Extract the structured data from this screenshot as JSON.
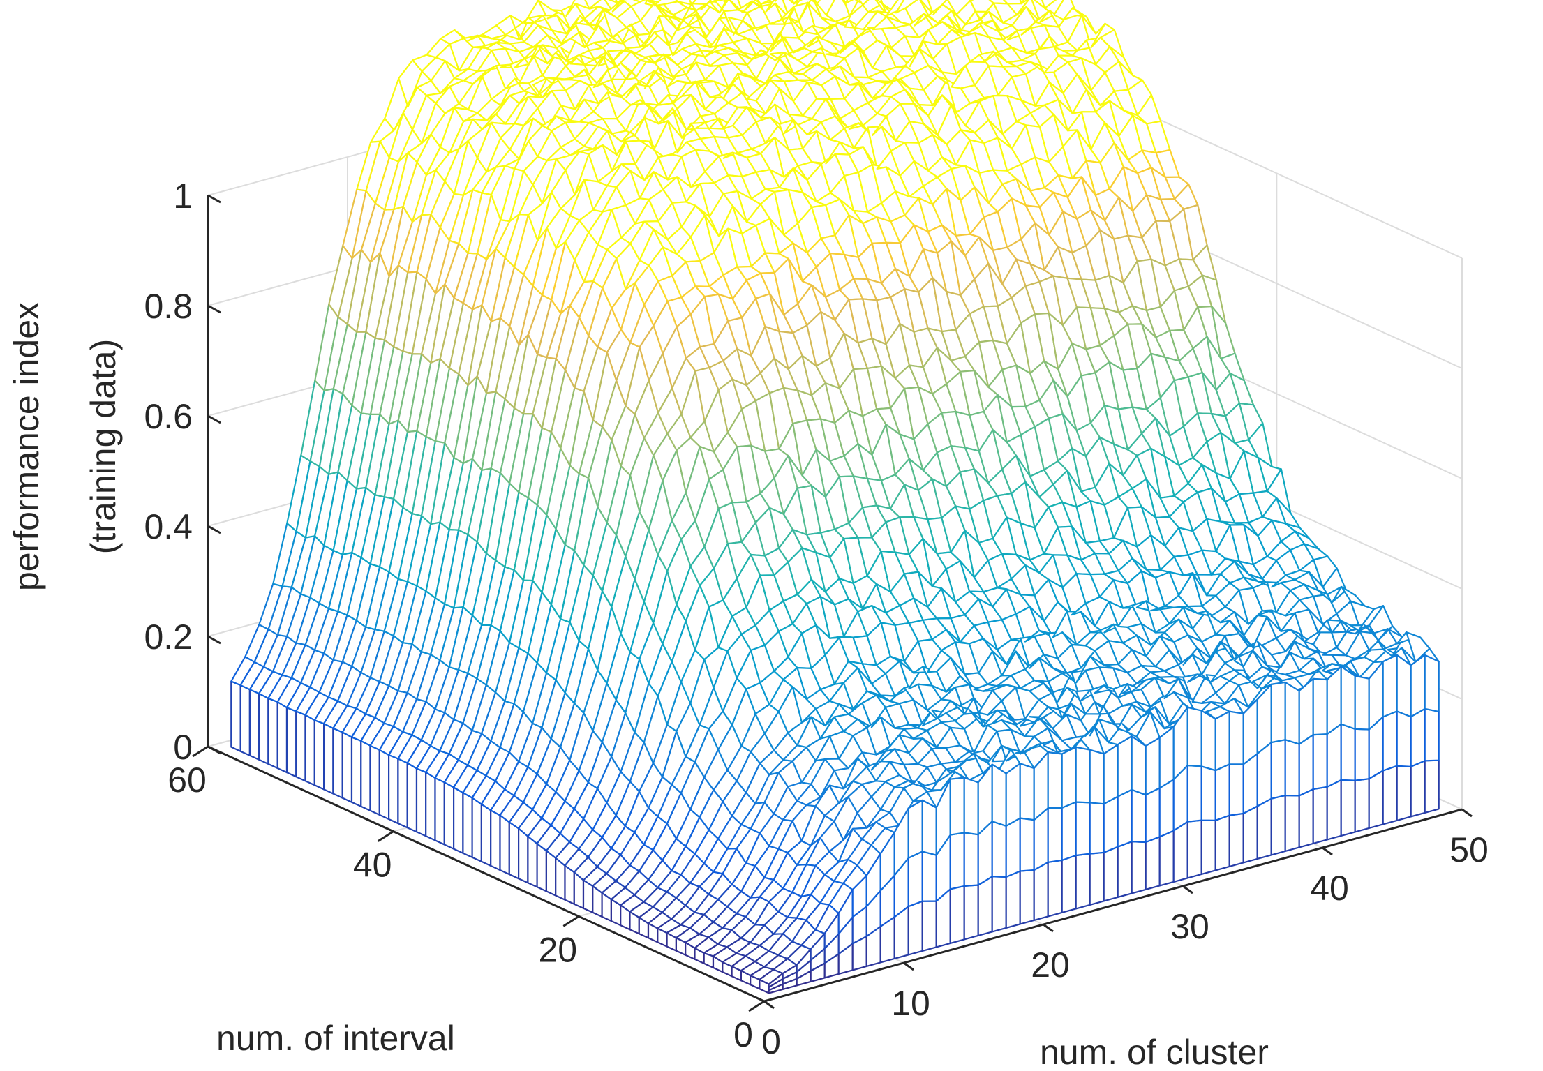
{
  "chart_data": {
    "type": "surface",
    "title": "",
    "xlabel": "num. of cluster",
    "ylabel": "num. of interval",
    "zlabel": [
      "performance index",
      "(training data)"
    ],
    "xlim": [
      0,
      50
    ],
    "ylim": [
      0,
      60
    ],
    "zlim": [
      0,
      1
    ],
    "xticks": [
      "0",
      "10",
      "20",
      "30",
      "40",
      "50"
    ],
    "yticks": [
      "0",
      "20",
      "40",
      "60"
    ],
    "zticks": [
      "0",
      "0.2",
      "0.4",
      "0.6",
      "0.8",
      "1"
    ],
    "grid": true,
    "colormap": "parula",
    "x_range": [
      1,
      49
    ],
    "y_range": [
      1,
      59
    ],
    "description_values": {
      "plateau_max": 0.97,
      "value_at_low_cluster_high_interval": 0.05,
      "value_at_high_cluster_low_interval": 0.28,
      "value_at_low_cluster_low_interval": 0.0
    },
    "colors": {
      "grid": "#dcdcdc",
      "axis": "#262626"
    }
  }
}
